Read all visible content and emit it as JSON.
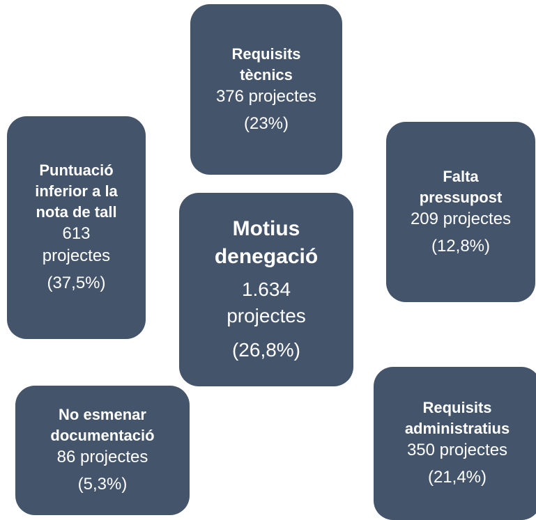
{
  "nodes": [
    {
      "title": [
        "Requisits",
        "tècnics"
      ],
      "count": [
        "376 projectes"
      ],
      "percent": "(23%)"
    },
    {
      "title": [
        "Puntuació",
        "inferior a la",
        "nota de tall"
      ],
      "count": [
        "613",
        "projectes"
      ],
      "percent": "(37,5%)"
    },
    {
      "title": [
        "Motius",
        "denegació"
      ],
      "count": [
        "1.634",
        "projectes"
      ],
      "percent": "(26,8%)"
    },
    {
      "title": [
        "Falta",
        "pressupost"
      ],
      "count": [
        "209 projectes"
      ],
      "percent": "(12,8%)"
    },
    {
      "title": [
        "No esmenar",
        "documentació"
      ],
      "count": [
        "86 projectes"
      ],
      "percent": "(5,3%)"
    },
    {
      "title": [
        "Requisits",
        "administratius"
      ],
      "count": [
        "350 projectes"
      ],
      "percent": "(21,4%)"
    }
  ]
}
